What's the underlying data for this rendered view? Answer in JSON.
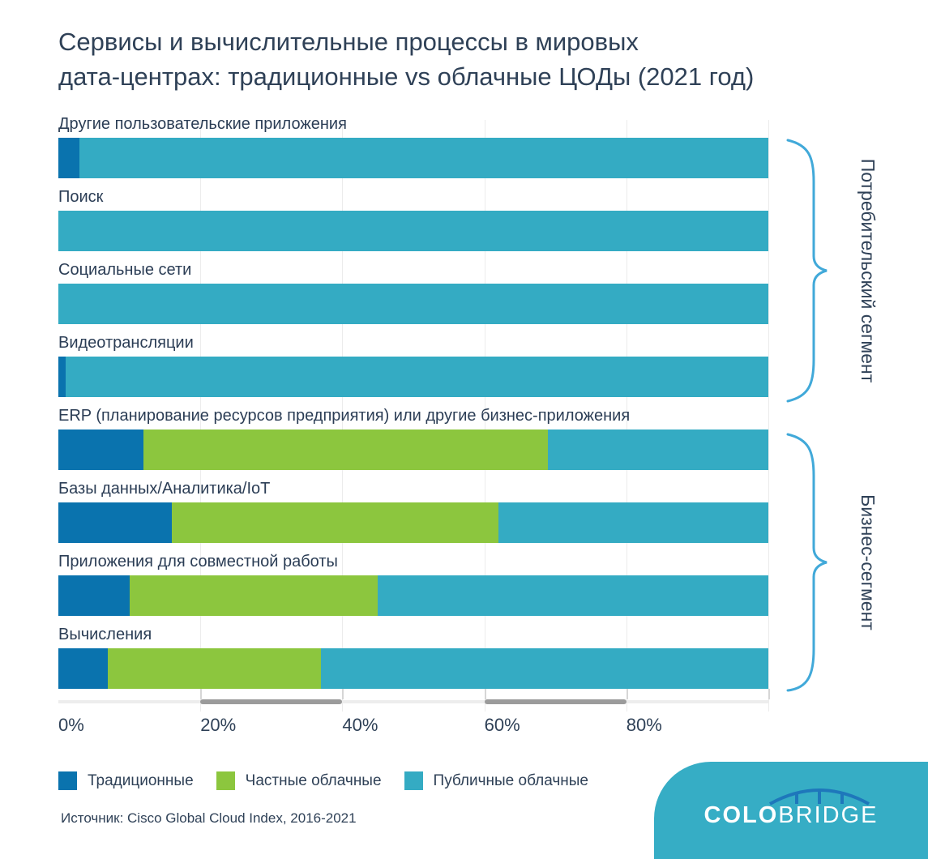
{
  "title": "Сервисы и вычислительные процессы в мировых\nдата-центрах: традиционные vs облачные ЦОДы (2021 год)",
  "source": "Источник: Cisco Global Cloud Index, 2016-2021",
  "logo": {
    "bold": "COLO",
    "light": "BRIDGE"
  },
  "colors": {
    "traditional": "#0a73ae",
    "private_cloud": "#8cc63e",
    "public_cloud": "#34abc3",
    "brace_accent": "#41a9d9",
    "logo_background": "#36adc5",
    "bridge_icon": "#1e77bb",
    "text": "#2f4157"
  },
  "chart_data": {
    "type": "bar",
    "orientation": "horizontal",
    "stacked": true,
    "unit": "%",
    "xlim": [
      0,
      100
    ],
    "x_tick_labels": [
      "0%",
      "20%",
      "40%",
      "60%",
      "80%"
    ],
    "grid": true,
    "legend_position": "bottom",
    "categories": [
      "Другие пользовательские приложения",
      "Поиск",
      "Социальные сети",
      "Видеотрансляции",
      "ERP (планирование ресурсов предприятия) или другие бизнес-приложения",
      "Базы данных/Аналитика/IoT",
      "Приложения для совместной работы",
      "Вычисления"
    ],
    "series": [
      {
        "name": "Традиционные",
        "color": "#0a73ae",
        "values": [
          3,
          0,
          0,
          1,
          12,
          16,
          10,
          7
        ]
      },
      {
        "name": "Частные облачные",
        "color": "#8cc63e",
        "values": [
          0,
          0,
          0,
          0,
          57,
          46,
          35,
          30
        ]
      },
      {
        "name": "Публичные облачные",
        "color": "#34abc3",
        "values": [
          97,
          100,
          100,
          99,
          31,
          38,
          55,
          63
        ]
      }
    ],
    "groups": [
      {
        "label": "Потребительский сегмент",
        "categories": [
          "Другие пользовательские приложения",
          "Поиск",
          "Социальные сети",
          "Видеотрансляции"
        ]
      },
      {
        "label": "Бизнес-сегмент",
        "categories": [
          "ERP (планирование ресурсов предприятия) или другие бизнес-приложения",
          "Базы данных/Аналитика/IoT",
          "Приложения для совместной работы",
          "Вычисления"
        ]
      }
    ]
  }
}
